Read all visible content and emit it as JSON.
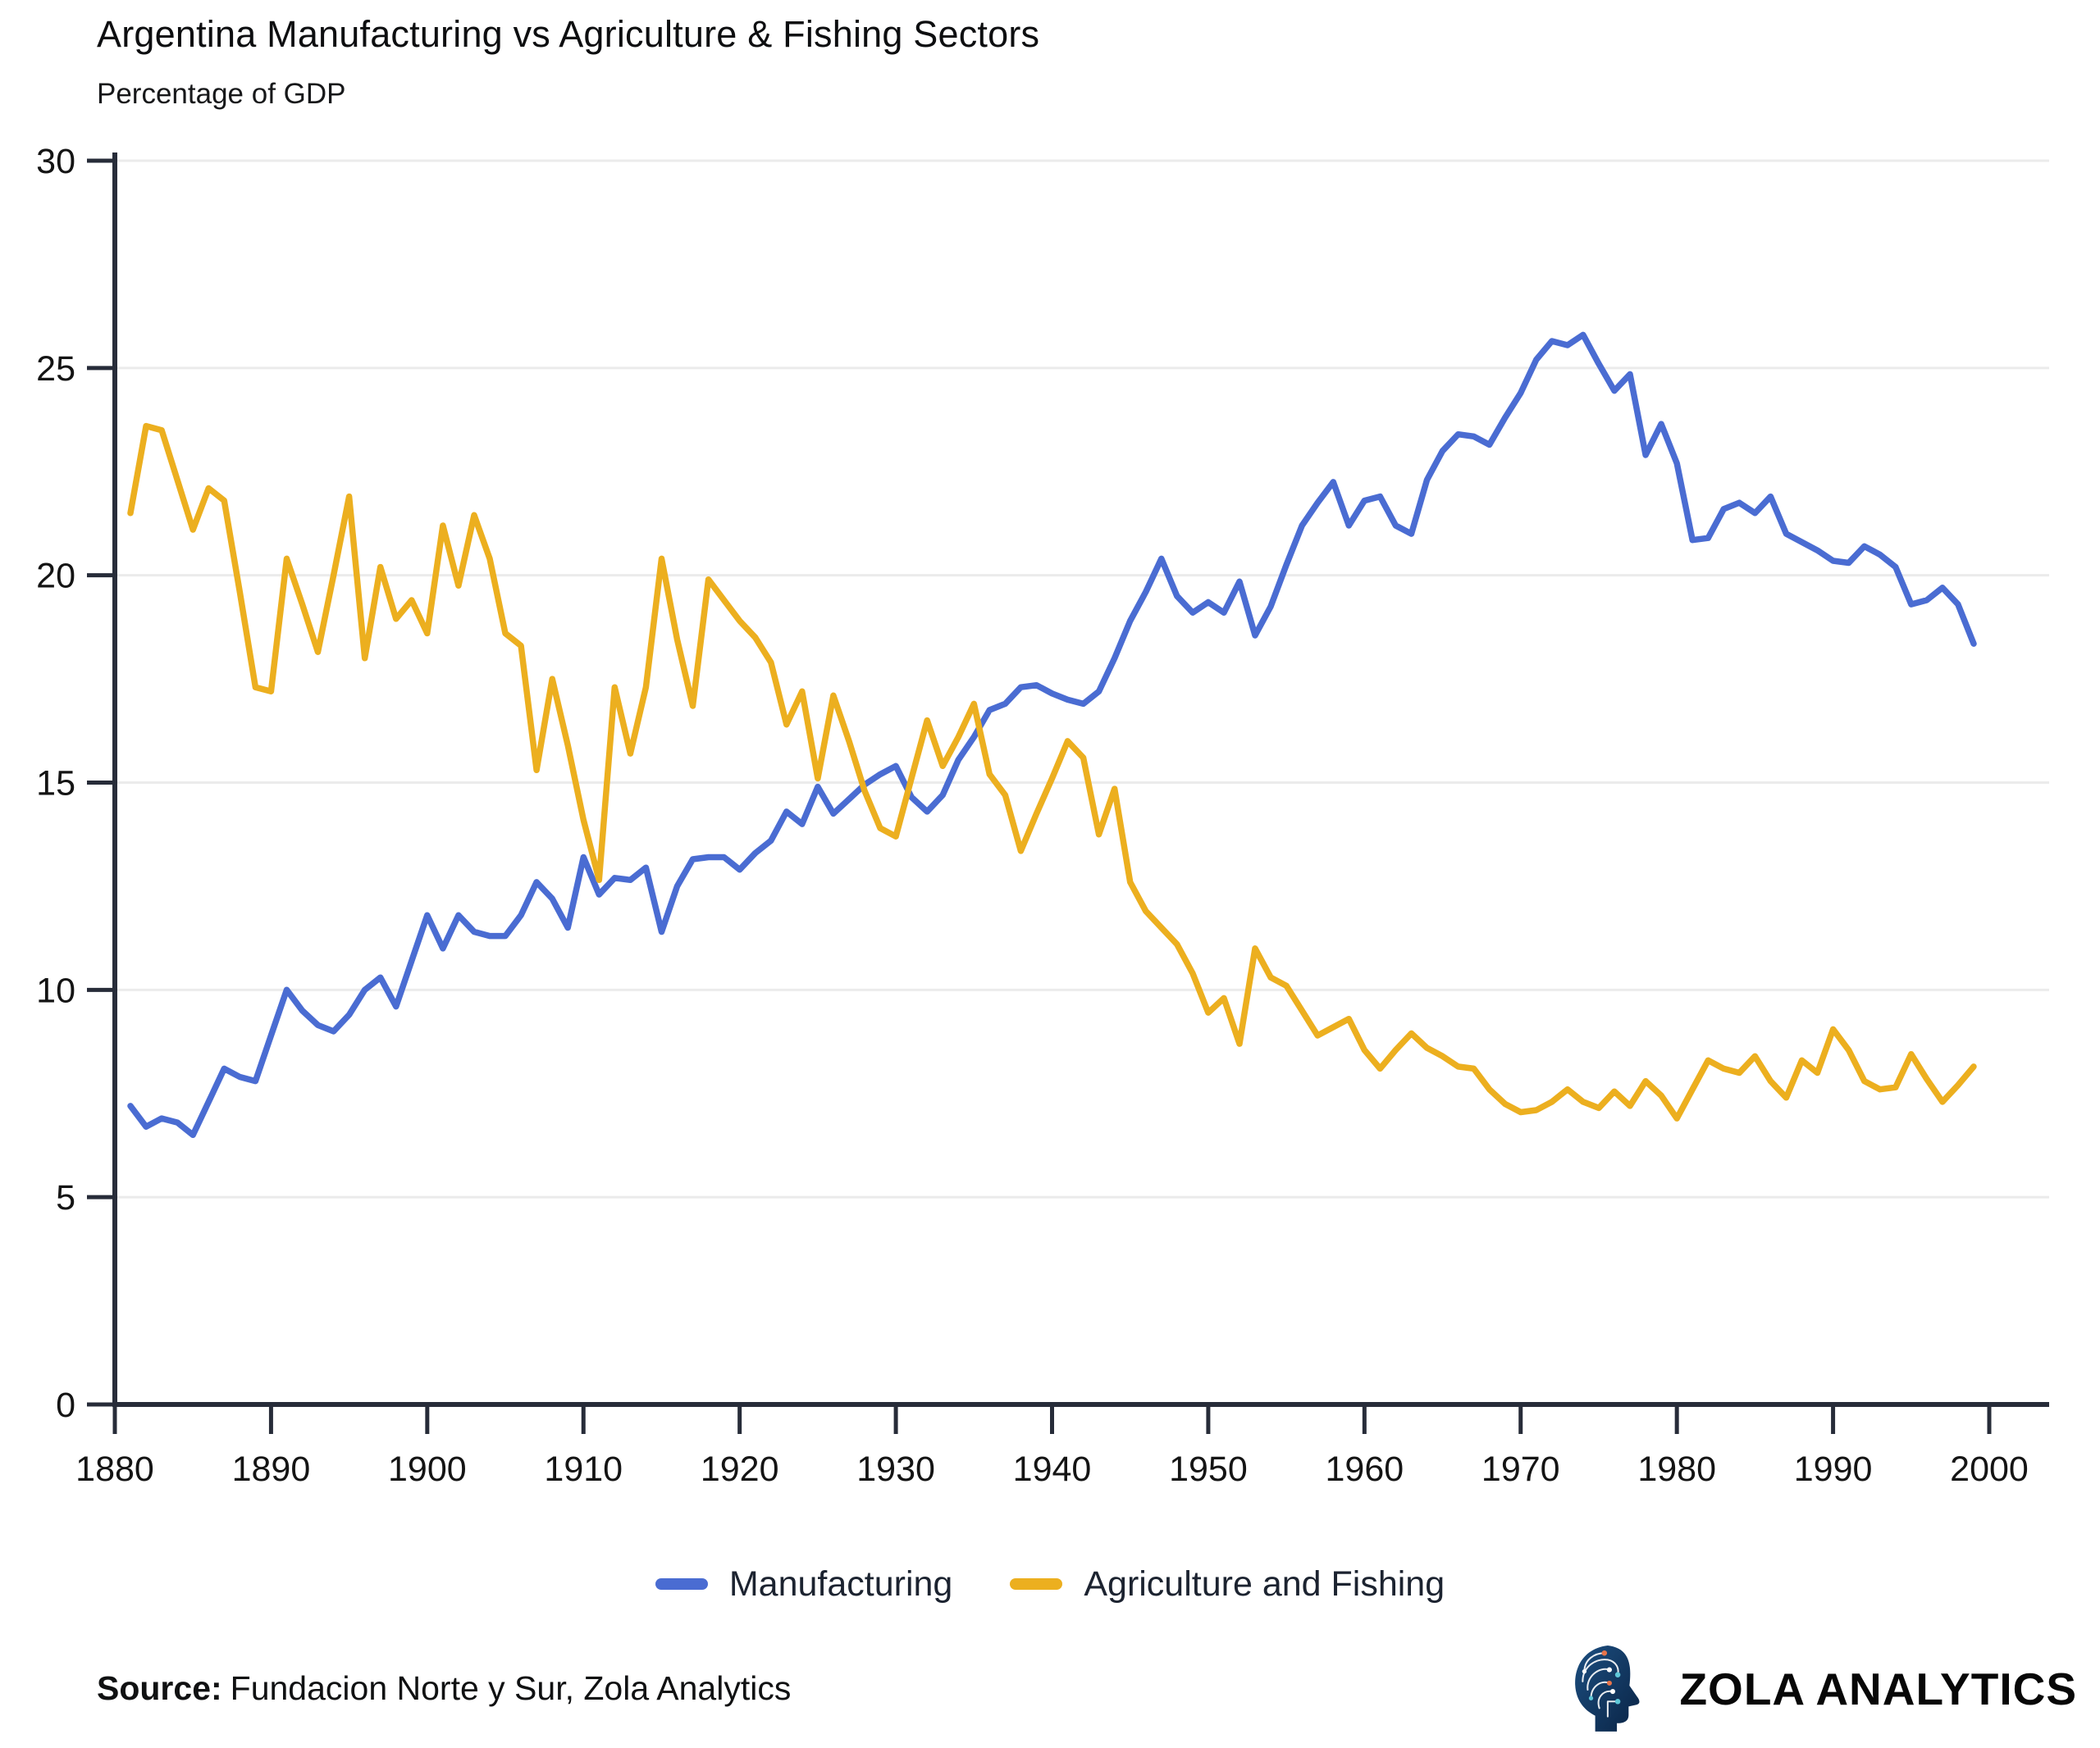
{
  "title": "Argentina Manufacturing vs Agriculture & Fishing Sectors",
  "subtitle": "Percentage of GDP",
  "legend": [
    {
      "label": "Manufacturing",
      "color": "#4a6cd2"
    },
    {
      "label": "Agriculture and Fishing",
      "color": "#ecaf1f"
    }
  ],
  "source": {
    "label": "Source:",
    "text": "Fundacion Norte y Sur, Zola Analytics"
  },
  "branding": {
    "name": "ZOLA ANALYTICS"
  },
  "chart_data": {
    "type": "line",
    "title": "Argentina Manufacturing vs Agriculture & Fishing Sectors",
    "subtitle": "Percentage of GDP",
    "xlabel": "",
    "ylabel": "Percentage of GDP",
    "ylim": [
      0,
      30
    ],
    "xlim": [
      1880,
      2004
    ],
    "yticks": [
      0,
      5,
      10,
      15,
      20,
      25,
      30
    ],
    "xticks": [
      1880,
      1890,
      1900,
      1910,
      1920,
      1930,
      1940,
      1950,
      1960,
      1970,
      1980,
      1990,
      2000
    ],
    "grid": true,
    "legend_position": "bottom",
    "years": [
      1881,
      1882,
      1883,
      1884,
      1885,
      1886,
      1887,
      1888,
      1889,
      1890,
      1891,
      1892,
      1893,
      1894,
      1895,
      1896,
      1897,
      1898,
      1899,
      1900,
      1901,
      1902,
      1903,
      1904,
      1905,
      1906,
      1907,
      1908,
      1909,
      1910,
      1911,
      1912,
      1913,
      1914,
      1915,
      1916,
      1917,
      1918,
      1919,
      1920,
      1921,
      1922,
      1923,
      1924,
      1925,
      1926,
      1927,
      1928,
      1929,
      1930,
      1931,
      1932,
      1933,
      1934,
      1935,
      1936,
      1937,
      1938,
      1939,
      1940,
      1941,
      1942,
      1943,
      1944,
      1945,
      1946,
      1947,
      1948,
      1949,
      1950,
      1951,
      1952,
      1953,
      1954,
      1955,
      1956,
      1957,
      1958,
      1959,
      1960,
      1961,
      1962,
      1963,
      1964,
      1965,
      1966,
      1967,
      1968,
      1969,
      1970,
      1971,
      1972,
      1973,
      1974,
      1975,
      1976,
      1977,
      1978,
      1979,
      1980,
      1981,
      1982,
      1983,
      1984,
      1985,
      1986,
      1987,
      1988,
      1989,
      1990,
      1991,
      1992,
      1993,
      1994,
      1995,
      1996,
      1997,
      1998,
      1999
    ],
    "series": [
      {
        "name": "Manufacturing",
        "color": "#4a6cd2",
        "values": [
          7.2,
          6.7,
          6.9,
          6.8,
          6.5,
          7.3,
          8.1,
          7.9,
          7.8,
          8.9,
          10.0,
          9.5,
          9.15,
          9.0,
          9.4,
          10.0,
          10.3,
          9.6,
          10.7,
          11.8,
          11.0,
          11.8,
          11.4,
          11.3,
          11.3,
          11.8,
          12.6,
          12.2,
          11.5,
          13.2,
          12.3,
          12.7,
          12.65,
          12.95,
          11.4,
          12.5,
          13.15,
          13.2,
          13.2,
          12.9,
          13.3,
          13.6,
          14.3,
          14.0,
          14.9,
          14.25,
          14.6,
          14.95,
          15.2,
          15.4,
          14.65,
          14.3,
          14.7,
          15.55,
          16.1,
          16.75,
          16.9,
          17.3,
          17.35,
          17.15,
          17.0,
          16.9,
          17.2,
          18.0,
          18.9,
          19.6,
          20.4,
          19.5,
          19.1,
          19.35,
          19.1,
          19.85,
          18.55,
          19.25,
          20.25,
          21.2,
          21.75,
          22.25,
          21.2,
          21.8,
          21.9,
          21.2,
          21.0,
          22.3,
          23.0,
          23.4,
          23.35,
          23.15,
          23.8,
          24.4,
          25.2,
          25.65,
          25.55,
          25.8,
          25.1,
          24.45,
          24.85,
          22.9,
          23.65,
          22.7,
          20.85,
          20.9,
          21.6,
          21.75,
          21.5,
          21.9,
          21.0,
          20.8,
          20.6,
          20.35,
          20.3,
          20.7,
          20.5,
          20.2,
          19.3,
          19.4,
          19.7,
          19.3,
          18.35
        ]
      },
      {
        "name": "Agriculture and Fishing",
        "color": "#ecaf1f",
        "values": [
          21.5,
          23.6,
          23.5,
          22.3,
          21.1,
          22.1,
          21.8,
          19.6,
          17.3,
          17.2,
          20.4,
          19.3,
          18.15,
          20.0,
          21.9,
          18.0,
          20.2,
          18.95,
          19.4,
          18.6,
          21.2,
          19.75,
          21.45,
          20.4,
          18.6,
          18.3,
          15.3,
          17.5,
          15.9,
          14.1,
          12.65,
          17.3,
          15.7,
          17.3,
          20.4,
          18.45,
          16.85,
          19.9,
          19.4,
          18.9,
          18.5,
          17.9,
          16.4,
          17.2,
          15.1,
          17.1,
          16.0,
          14.8,
          13.9,
          13.7,
          15.1,
          16.5,
          15.4,
          16.1,
          16.9,
          15.2,
          14.7,
          13.35,
          14.25,
          15.1,
          16.0,
          15.6,
          13.75,
          14.85,
          12.6,
          11.9,
          11.5,
          11.1,
          10.4,
          9.45,
          9.8,
          8.7,
          11.0,
          10.3,
          10.1,
          9.5,
          8.9,
          9.1,
          9.3,
          8.55,
          8.1,
          8.55,
          8.95,
          8.6,
          8.4,
          8.15,
          8.1,
          7.6,
          7.25,
          7.05,
          7.1,
          7.3,
          7.6,
          7.3,
          7.15,
          7.55,
          7.2,
          7.8,
          7.45,
          6.9,
          7.6,
          8.3,
          8.1,
          8.0,
          8.4,
          7.8,
          7.4,
          8.3,
          8.0,
          9.05,
          8.55,
          7.8,
          7.6,
          7.65,
          8.45,
          7.85,
          7.3,
          7.7,
          8.15
        ]
      }
    ],
    "style": {
      "grid_color": "#ebebeb",
      "axis_color": "#272c39",
      "tick_label_color": "#141414",
      "background": "#ffffff"
    }
  }
}
